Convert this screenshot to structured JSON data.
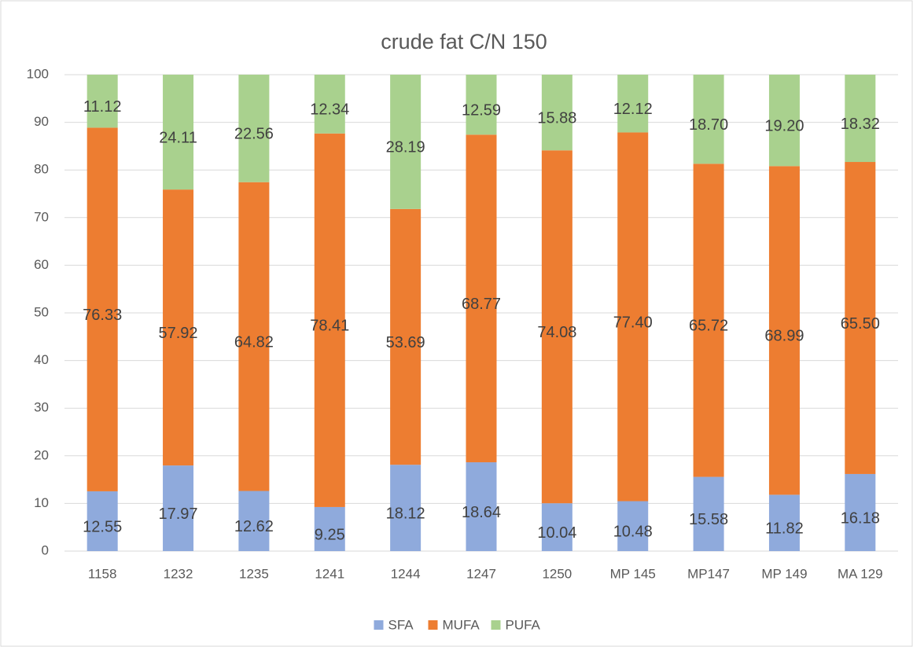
{
  "chart_data": {
    "type": "stacked_bar",
    "title": "crude fat C/N 150",
    "categories": [
      "1158",
      "1232",
      "1235",
      "1241",
      "1244",
      "1247",
      "1250",
      "MP 145",
      "MP147",
      "MP 149",
      "MA 129"
    ],
    "series": [
      {
        "name": "SFA",
        "color": "#8faadc",
        "values": [
          12.55,
          17.97,
          12.62,
          9.25,
          18.12,
          18.64,
          10.04,
          10.48,
          15.58,
          11.82,
          16.18
        ],
        "value_labels": [
          "12.55",
          "17.97",
          "12.62",
          "9.25",
          "18.12",
          "18.64",
          "10.04",
          "10.48",
          "15.58",
          "11.82",
          "16.18"
        ]
      },
      {
        "name": "MUFA",
        "color": "#ed7d31",
        "values": [
          76.33,
          57.92,
          64.82,
          78.41,
          53.69,
          68.77,
          74.08,
          77.4,
          65.72,
          68.99,
          65.5
        ],
        "value_labels": [
          "76.33",
          "57.92",
          "64.82",
          "78.41",
          "53.69",
          "68.77",
          "74.08",
          "77.40",
          "65.72",
          "68.99",
          "65.50"
        ]
      },
      {
        "name": "PUFA",
        "color": "#a9d18e",
        "values": [
          11.12,
          24.11,
          22.56,
          12.34,
          28.19,
          12.59,
          15.88,
          12.12,
          18.7,
          19.2,
          18.32
        ],
        "value_labels": [
          "11.12",
          "24.11",
          "22.56",
          "12.34",
          "28.19",
          "12.59",
          "15.88",
          "12.12",
          "18.70",
          "19.20",
          "18.32"
        ]
      }
    ],
    "ylim": [
      0,
      100
    ],
    "yticks": [
      0,
      10,
      20,
      30,
      40,
      50,
      60,
      70,
      80,
      90,
      100
    ],
    "grid": true,
    "legend": "bottom"
  }
}
